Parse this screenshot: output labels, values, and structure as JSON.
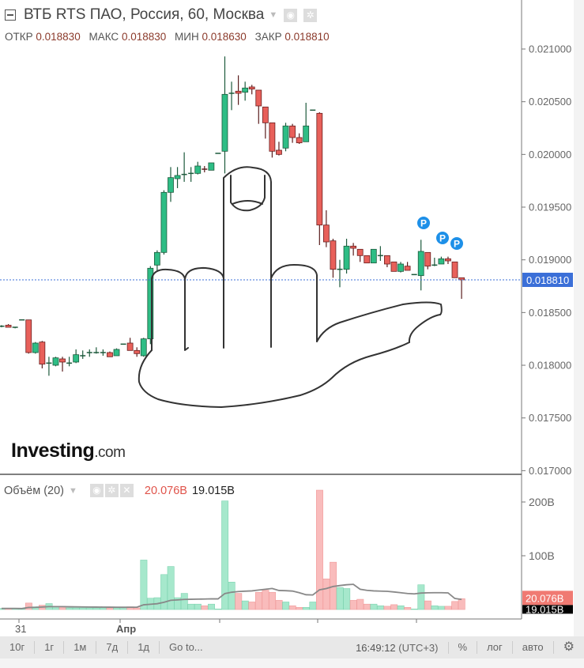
{
  "header": {
    "title": "ВТБ RTS ПАО, Россия, 60, Москва"
  },
  "ohlc": {
    "open_label": "ОТКР",
    "open": "0.018830",
    "high_label": "МАКС",
    "high": "0.018830",
    "low_label": "МИН",
    "low": "0.018630",
    "close_label": "ЗАКР",
    "close": "0.018810"
  },
  "volume_header": {
    "title": "Объём (20)",
    "value": "20.076B",
    "ma_value": "19.015B"
  },
  "logo": {
    "main": "Investing",
    "suffix": ".com"
  },
  "price_axis": {
    "ticks": [
      "0.021000",
      "0.020500",
      "0.020000",
      "0.019500",
      "0.019000",
      "0.018500",
      "0.018000",
      "0.017500",
      "0.017000"
    ],
    "current": "0.018810"
  },
  "volume_axis": {
    "ticks": [
      "200B",
      "100B"
    ],
    "current_volume": "20.076B",
    "current_ma": "19.015B"
  },
  "time_axis": {
    "labels": [
      "31",
      "Апр"
    ]
  },
  "toolbar": {
    "ranges": [
      "10г",
      "1г",
      "1м",
      "7д",
      "1д"
    ],
    "goto": "Go to...",
    "time": "16:49:12",
    "tz": "(UTC+3)",
    "percent": "%",
    "log": "лог",
    "auto": "авто"
  },
  "colors": {
    "up": "#2ebd85",
    "down": "#e8605a",
    "up_volume": "#a6e8cc",
    "down_volume": "#f9bcbc",
    "price_line": "#3b6fd8",
    "marker": "#1e90e8",
    "ma": "#888888"
  },
  "markers": {
    "label": "P"
  },
  "chart_data": {
    "type": "candlestick",
    "price_range": [
      0.017,
      0.021
    ],
    "ohlc": [
      [
        0.01837,
        0.01838,
        0.01836,
        0.01837
      ],
      [
        0.01838,
        0.01839,
        0.01836,
        0.01836
      ],
      [
        0.01835,
        0.01836,
        0.01835,
        0.01836
      ],
      [
        0.01843,
        0.01843,
        0.01843,
        0.01843
      ],
      [
        0.01843,
        0.01843,
        0.01811,
        0.01812
      ],
      [
        0.01812,
        0.01822,
        0.01811,
        0.01821
      ],
      [
        0.01822,
        0.01823,
        0.01797,
        0.01801
      ],
      [
        0.01802,
        0.01808,
        0.0179,
        0.01802
      ],
      [
        0.018,
        0.01808,
        0.01799,
        0.01807
      ],
      [
        0.01806,
        0.01808,
        0.01794,
        0.01803
      ],
      [
        0.01802,
        0.01808,
        0.01799,
        0.01802
      ],
      [
        0.01803,
        0.01815,
        0.01802,
        0.0181
      ],
      [
        0.01809,
        0.01814,
        0.01806,
        0.01809
      ],
      [
        0.01812,
        0.01815,
        0.01808,
        0.01812
      ],
      [
        0.01812,
        0.01817,
        0.01811,
        0.01812
      ],
      [
        0.01812,
        0.01815,
        0.01809,
        0.01812
      ],
      [
        0.01812,
        0.01813,
        0.01808,
        0.01808
      ],
      [
        0.01809,
        0.01816,
        0.01809,
        0.01815
      ],
      [
        0.0182,
        0.0182,
        0.0182,
        0.0182
      ],
      [
        0.01821,
        0.01826,
        0.01814,
        0.01814
      ],
      [
        0.01814,
        0.01817,
        0.01808,
        0.01811
      ],
      [
        0.01809,
        0.01826,
        0.01808,
        0.01825
      ],
      [
        0.01825,
        0.01894,
        0.0182,
        0.01892
      ],
      [
        0.01895,
        0.01909,
        0.0189,
        0.01907
      ],
      [
        0.01907,
        0.01966,
        0.01905,
        0.01964
      ],
      [
        0.01964,
        0.01988,
        0.01955,
        0.01978
      ],
      [
        0.01977,
        0.01988,
        0.01968,
        0.0198
      ],
      [
        0.01981,
        0.02002,
        0.01974,
        0.01981
      ],
      [
        0.01982,
        0.01988,
        0.01974,
        0.01982
      ],
      [
        0.01982,
        0.01993,
        0.01981,
        0.01989
      ],
      [
        0.01986,
        0.01989,
        0.01983,
        0.01985
      ],
      [
        0.01985,
        0.01992,
        0.01985,
        0.01992
      ],
      [
        0.02001,
        0.02001,
        0.02001,
        0.02001
      ],
      [
        0.02003,
        0.02093,
        0.01982,
        0.02057
      ],
      [
        0.02058,
        0.02069,
        0.02042,
        0.02058
      ],
      [
        0.0206,
        0.02075,
        0.02047,
        0.02058
      ],
      [
        0.02059,
        0.02069,
        0.02051,
        0.02063
      ],
      [
        0.02064,
        0.02066,
        0.02057,
        0.02062
      ],
      [
        0.02061,
        0.02061,
        0.02029,
        0.02046
      ],
      [
        0.02045,
        0.02045,
        0.02015,
        0.0203
      ],
      [
        0.0203,
        0.0203,
        0.01997,
        0.02003
      ],
      [
        0.02004,
        0.02012,
        0.01999,
        0.02
      ],
      [
        0.02006,
        0.0203,
        0.02003,
        0.02027
      ],
      [
        0.02027,
        0.02029,
        0.02011,
        0.02016
      ],
      [
        0.02016,
        0.0202,
        0.0201,
        0.02011
      ],
      [
        0.02012,
        0.02049,
        0.02012,
        0.02027
      ],
      [
        0.02042,
        0.02042,
        0.02042,
        0.02042
      ],
      [
        0.02039,
        0.0204,
        0.01914,
        0.01933
      ],
      [
        0.01933,
        0.01947,
        0.01912,
        0.01917
      ],
      [
        0.01918,
        0.0192,
        0.01883,
        0.01891
      ],
      [
        0.01891,
        0.019,
        0.01874,
        0.01891
      ],
      [
        0.01891,
        0.0192,
        0.01887,
        0.01913
      ],
      [
        0.01913,
        0.01916,
        0.01904,
        0.01911
      ],
      [
        0.0191,
        0.0191,
        0.01898,
        0.01904
      ],
      [
        0.01904,
        0.01904,
        0.01897,
        0.01897
      ],
      [
        0.01897,
        0.0191,
        0.01897,
        0.0191
      ],
      [
        0.01904,
        0.01913,
        0.01899,
        0.01904
      ],
      [
        0.01904,
        0.01904,
        0.01893,
        0.01896
      ],
      [
        0.01898,
        0.01898,
        0.01889,
        0.01889
      ],
      [
        0.01889,
        0.01898,
        0.01888,
        0.01896
      ],
      [
        0.01894,
        0.01898,
        0.0189,
        0.0189
      ],
      [
        0.01886,
        0.01886,
        0.01886,
        0.01886
      ],
      [
        0.01885,
        0.01919,
        0.01871,
        0.01908
      ],
      [
        0.01907,
        0.01907,
        0.01891,
        0.01894
      ],
      [
        0.01895,
        0.01902,
        0.01894,
        0.01895
      ],
      [
        0.01896,
        0.01903,
        0.01896,
        0.01901
      ],
      [
        0.01901,
        0.01903,
        0.01896,
        0.01899
      ],
      [
        0.01898,
        0.01898,
        0.01883,
        0.01883
      ],
      [
        0.01883,
        0.01883,
        0.01863,
        0.01881
      ]
    ],
    "volume_billions": [
      2,
      2,
      2,
      1,
      12,
      5,
      8,
      11,
      5,
      5,
      3,
      3,
      3,
      3,
      3,
      3,
      3,
      3,
      2,
      5,
      3,
      92,
      21,
      22,
      65,
      80,
      22,
      30,
      10,
      10,
      7,
      10,
      1,
      202,
      51,
      30,
      16,
      14,
      32,
      36,
      32,
      17,
      14,
      7,
      4,
      4,
      14,
      222,
      57,
      88,
      41,
      39,
      17,
      19,
      10,
      10,
      7,
      6,
      9,
      7,
      4,
      1,
      46,
      16,
      7,
      6,
      6,
      15,
      20.076
    ],
    "volume_ma_period": 20,
    "markers_at": [
      62,
      65,
      66
    ]
  }
}
